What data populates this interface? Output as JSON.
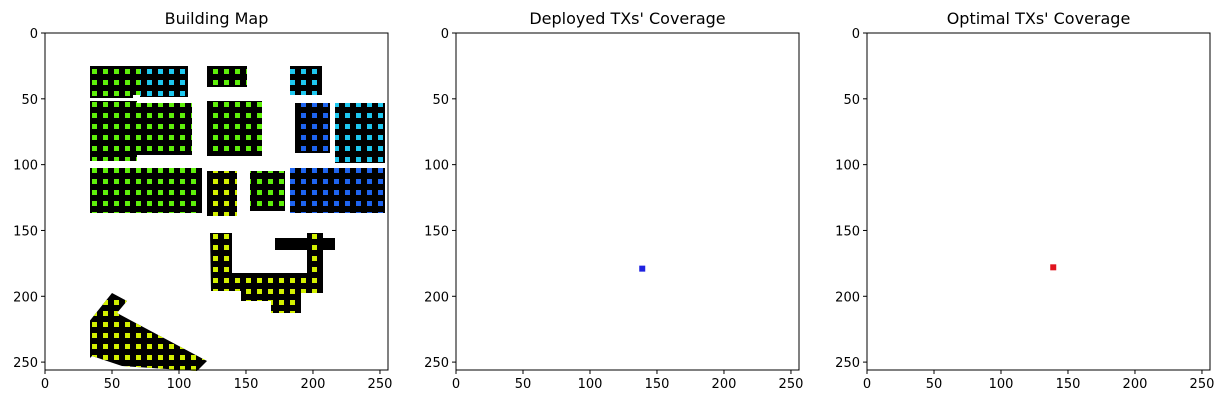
{
  "chart_data": [
    {
      "type": "heatmap",
      "title": "Building Map",
      "xticks": [
        0,
        50,
        100,
        150,
        200,
        250
      ],
      "yticks": [
        0,
        50,
        100,
        150,
        200,
        250
      ],
      "xlim": [
        0,
        256
      ],
      "ylim": [
        256,
        0
      ]
    },
    {
      "type": "heatmap",
      "title": "Deployed TXs' Coverage",
      "xticks": [
        0,
        50,
        100,
        150,
        200,
        250
      ],
      "yticks": [
        0,
        50,
        100,
        150,
        200,
        250
      ],
      "xlim": [
        0,
        256
      ],
      "ylim": [
        256,
        0
      ],
      "tx_marker": {
        "x": 139,
        "y": 179,
        "color": "#1f22e0"
      }
    },
    {
      "type": "heatmap",
      "title": "Optimal TXs' Coverage",
      "xticks": [
        0,
        50,
        100,
        150,
        200,
        250
      ],
      "yticks": [
        0,
        50,
        100,
        150,
        200,
        250
      ],
      "xlim": [
        0,
        256
      ],
      "ylim": [
        256,
        0
      ],
      "tx_marker": {
        "x": 139,
        "y": 178,
        "color": "#e0141e"
      }
    }
  ],
  "colors": {
    "coverage_high": "#fde725",
    "coverage_mid": "#5ec962",
    "coverage_low": "#21918c",
    "coverage_none": "#440154",
    "building": "#1e1e1e",
    "map_building": "#000000",
    "map_green": "#5ef00a",
    "map_cyan": "#1ec8f0",
    "map_blue": "#1e64f0",
    "map_yellow": "#d2f000"
  }
}
